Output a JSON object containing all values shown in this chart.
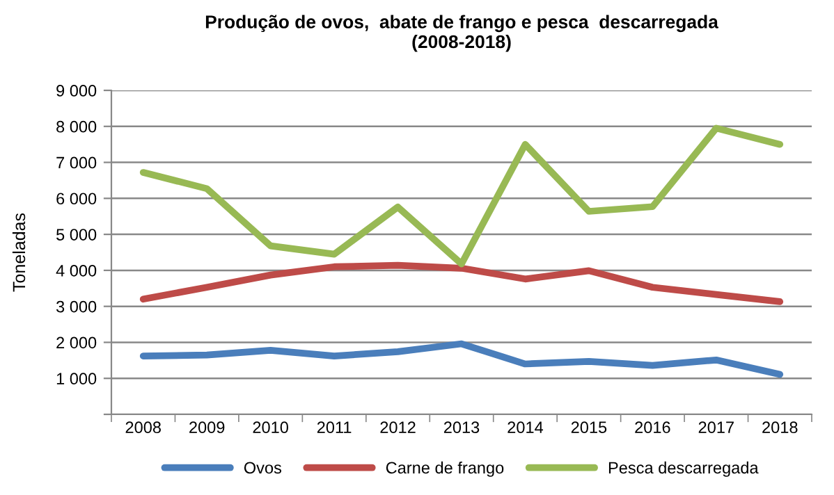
{
  "chart_data": {
    "type": "line",
    "title": "Produção de ovos,  abate de frango e pesca  descarregada\n(2008-2018)",
    "ylabel": "Toneladas",
    "categories": [
      "2008",
      "2009",
      "2010",
      "2011",
      "2012",
      "2013",
      "2014",
      "2015",
      "2016",
      "2017",
      "2018"
    ],
    "series": [
      {
        "name": "Ovos",
        "color": "#4a7ebb",
        "values": [
          1620,
          1650,
          1780,
          1620,
          1740,
          1960,
          1400,
          1470,
          1360,
          1510,
          1110
        ]
      },
      {
        "name": "Carne de frango",
        "color": "#be4b48",
        "values": [
          3200,
          3530,
          3870,
          4100,
          4140,
          4060,
          3760,
          3990,
          3530,
          3330,
          3130
        ]
      },
      {
        "name": "Pesca descarregada",
        "color": "#98b954",
        "values": [
          6720,
          6270,
          4680,
          4450,
          5760,
          4180,
          7500,
          5640,
          5770,
          7950,
          7500
        ]
      }
    ],
    "ylim": [
      0,
      9000
    ],
    "yticks": [
      {
        "value": 0,
        "label": null
      },
      {
        "value": 1000,
        "label": "1 000"
      },
      {
        "value": 2000,
        "label": "2 000"
      },
      {
        "value": 3000,
        "label": "3 000"
      },
      {
        "value": 4000,
        "label": "4 000"
      },
      {
        "value": 5000,
        "label": "5 000"
      },
      {
        "value": 6000,
        "label": "6 000"
      },
      {
        "value": 7000,
        "label": "7 000"
      },
      {
        "value": 8000,
        "label": "8 000"
      },
      {
        "value": 9000,
        "label": "9 000"
      }
    ],
    "grid": "y",
    "legend": "bottom",
    "marker": "none",
    "line_style": "solid"
  }
}
